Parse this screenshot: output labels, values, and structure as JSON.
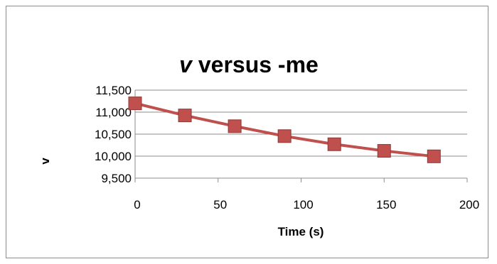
{
  "chart_data": {
    "type": "line",
    "title": {
      "italic": "v",
      "rest": " versus -me"
    },
    "xlabel": "Time (s)",
    "ylabel": "v",
    "xlim": [
      0,
      200
    ],
    "ylim": [
      9500,
      11500
    ],
    "x_ticks": [
      0,
      50,
      100,
      150,
      200
    ],
    "x_tick_labels": [
      "0",
      "50",
      "100",
      "150",
      "200"
    ],
    "y_ticks": [
      9500,
      10000,
      10500,
      11000,
      11500
    ],
    "y_tick_labels": [
      "9,500",
      "10,000",
      "10,500",
      "11,000",
      "11,500"
    ],
    "grid": "horizontal",
    "legend": "none",
    "series": [
      {
        "marker": "square",
        "color": "#c0504d",
        "marker_color": "#c0504d",
        "x": [
          0,
          30,
          60,
          90,
          120,
          150,
          180
        ],
        "y": [
          11200,
          10925,
          10680,
          10455,
          10270,
          10120,
          9995
        ]
      }
    ]
  }
}
